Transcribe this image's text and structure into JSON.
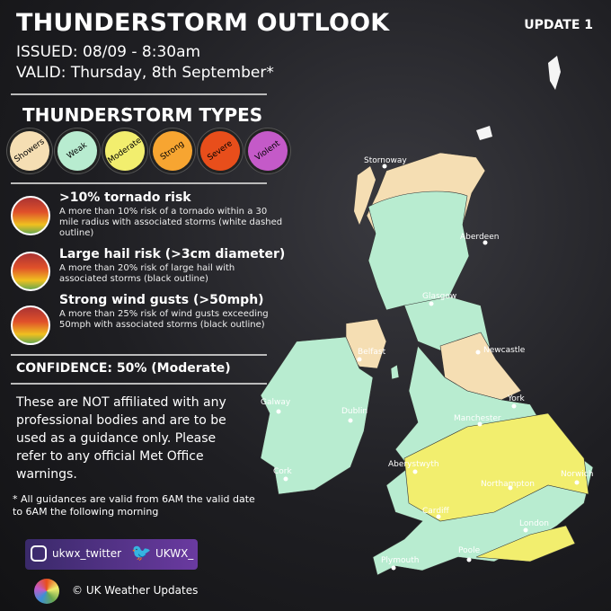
{
  "header": {
    "title": "THUNDERSTORM OUTLOOK",
    "update": "UPDATE 1",
    "issued": "ISSUED: 08/09 - 8:30am",
    "valid": "VALID: Thursday, 8th September*"
  },
  "types": {
    "title": "THUNDERSTORM TYPES",
    "items": [
      {
        "label": "Showers",
        "color": "#f5deb3"
      },
      {
        "label": "Weak",
        "color": "#b8ecd0"
      },
      {
        "label": "Moderate",
        "color": "#f2ee6e"
      },
      {
        "label": "Strong",
        "color": "#f7a531"
      },
      {
        "label": "Severe",
        "color": "#e84e1b"
      },
      {
        "label": "Violent",
        "color": "#c45ac8"
      }
    ]
  },
  "risks": [
    {
      "title": ">10% tornado risk",
      "text": "A more than 10% risk of a tornado within a 30 mile radius with associated storms (white dashed outline)",
      "icon": "tornado-icon"
    },
    {
      "title": "Large hail risk (>3cm diameter)",
      "text": "A more than 20% risk of large hail with associated storms (black outline)",
      "icon": "hail-icon"
    },
    {
      "title": "Strong wind gusts (>50mph)",
      "text": "A more than 25% risk of wind gusts exceeding 50mph with associated storms (black outline)",
      "icon": "wind-icon"
    }
  ],
  "confidence": "CONFIDENCE: 50% (Moderate)",
  "disclaimer": "These are NOT affiliated with any professional bodies and are to be used as a guidance only. Please refer to any official Met Office warnings.",
  "note": "* All guidances are valid from 6AM the valid date to 6AM the following morning",
  "social": {
    "instagram": "ukwx_twitter",
    "twitter": "UKWX_"
  },
  "footer": "© UK Weather Updates",
  "map": {
    "cities": [
      "Stornoway",
      "Aberdeen",
      "Glasgow",
      "Newcastle",
      "Belfast",
      "Galway",
      "Dublin",
      "York",
      "Manchester",
      "Aberystwyth",
      "Norwich",
      "Northampton",
      "Cork",
      "Cardiff",
      "London",
      "Poole",
      "Plymouth"
    ],
    "colors": {
      "showers": "#f5deb3",
      "weak": "#b8ecd0",
      "moderate": "#f2ee6e"
    }
  }
}
